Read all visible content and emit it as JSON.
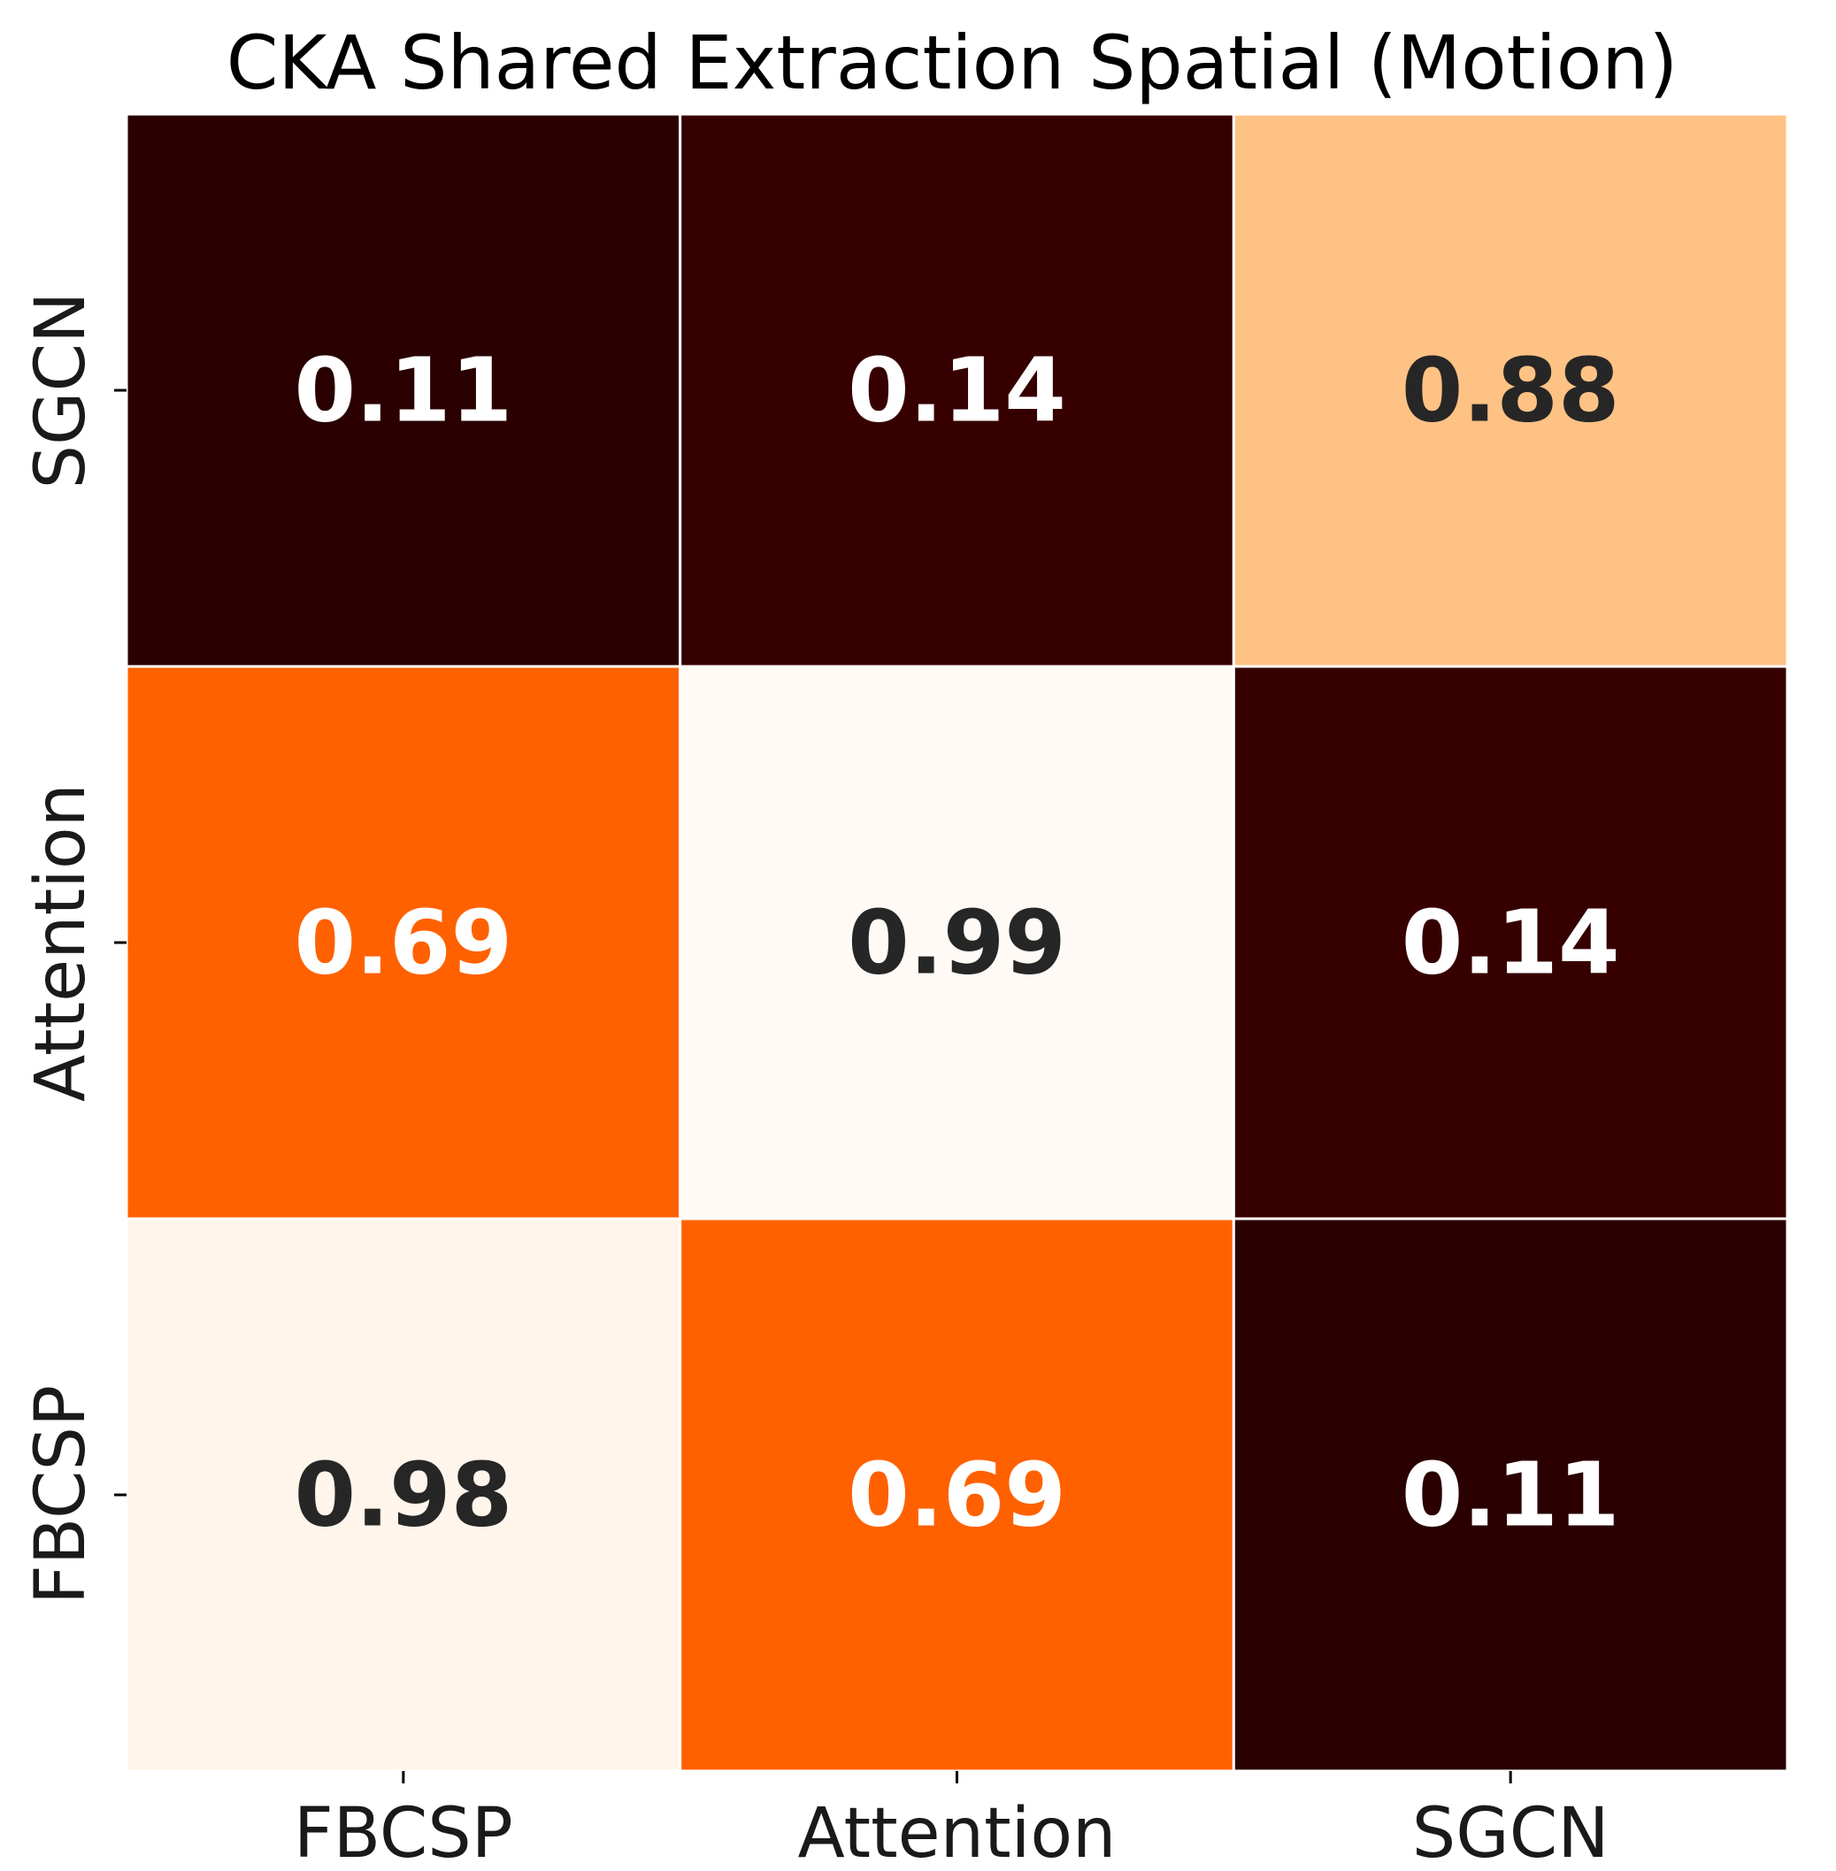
{
  "chart_data": {
    "type": "heatmap",
    "title": "CKA Shared Extraction Spatial (Motion)",
    "x_categories": [
      "FBCSP",
      "Attention",
      "SGCN"
    ],
    "y_categories_top_to_bottom": [
      "SGCN",
      "Attention",
      "FBCSP"
    ],
    "values_top_to_bottom": [
      [
        0.11,
        0.14,
        0.88
      ],
      [
        0.69,
        0.99,
        0.14
      ],
      [
        0.98,
        0.69,
        0.11
      ]
    ],
    "colormap": "gist_heat",
    "cell_border_color": "#ffffff",
    "xlabel": "",
    "ylabel": "",
    "colorbar": false
  }
}
